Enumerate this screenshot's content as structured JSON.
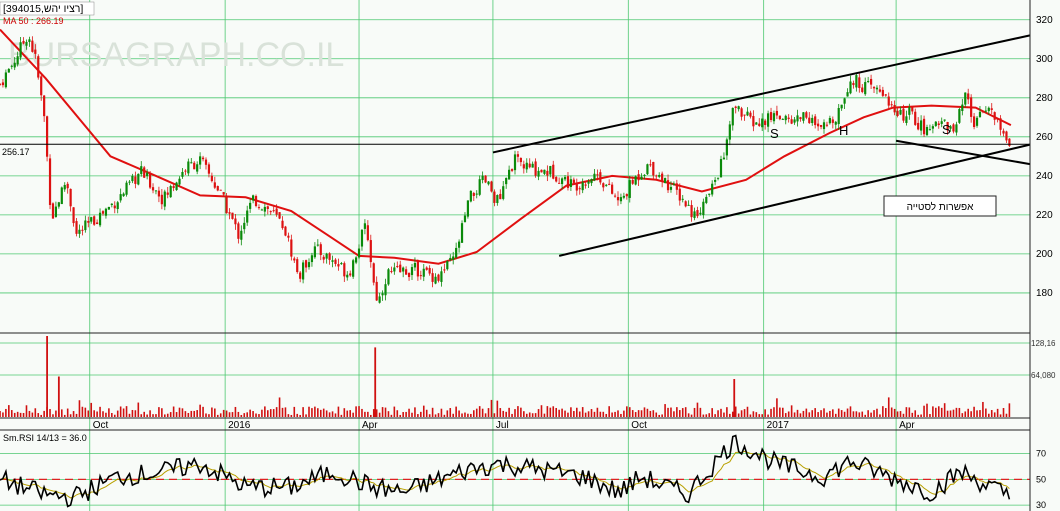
{
  "header": {
    "instrument": "[394015,רציו יהש]",
    "ma_label": "MA 50 : 266.19"
  },
  "watermark": "BURSAGRAPH.CO.IL",
  "price_marker": "256.17",
  "annotations": {
    "button": "אפשרות לסטייה",
    "left_shoulder": "S",
    "head": "H",
    "right_shoulder": "S"
  },
  "rsi_label": "Sm.RSI 14/13 = 36.0",
  "colors": {
    "background": "#f8fbf8",
    "grid": "#4cc870",
    "candle_up": "#0a8a0a",
    "candle_down": "#dd1111",
    "ma": "#e01010",
    "volume": "#d01010",
    "rsi": "#000000",
    "rsi_signal": "#b8a000",
    "rsi_level_line": "#dd2222"
  },
  "chart_data": {
    "type": "candlestick",
    "price_axis": {
      "ticks": [
        180,
        200,
        220,
        240,
        260,
        280,
        300,
        320
      ],
      "range": [
        161,
        325
      ]
    },
    "volume_axis": {
      "ticks": [
        "64,080",
        "128,16"
      ]
    },
    "rsi_axis": {
      "ticks": [
        30,
        50,
        70
      ],
      "range": [
        27,
        86
      ]
    },
    "x_axis": {
      "ticks": [
        "Oct",
        "2016",
        "Apr",
        "Jul",
        "Oct",
        "2017",
        "Apr"
      ]
    },
    "price_path": [
      [
        "2015-08-01",
        287
      ],
      [
        "2015-08-10",
        298
      ],
      [
        "2015-08-20",
        313
      ],
      [
        "2015-08-25",
        300
      ],
      [
        "2015-08-31",
        270
      ],
      [
        "2015-09-05",
        218
      ],
      [
        "2015-09-15",
        238
      ],
      [
        "2015-09-22",
        210
      ],
      [
        "2015-10-05",
        218
      ],
      [
        "2015-10-20",
        228
      ],
      [
        "2015-11-05",
        242
      ],
      [
        "2015-11-20",
        228
      ],
      [
        "2015-12-05",
        244
      ],
      [
        "2015-12-15",
        248
      ],
      [
        "2015-12-28",
        232
      ],
      [
        "2016-01-10",
        210
      ],
      [
        "2016-01-20",
        228
      ],
      [
        "2016-02-01",
        222
      ],
      [
        "2016-02-10",
        214
      ],
      [
        "2016-02-20",
        188
      ],
      [
        "2016-03-01",
        203
      ],
      [
        "2016-03-15",
        196
      ],
      [
        "2016-03-25",
        190
      ],
      [
        "2016-04-01",
        205
      ],
      [
        "2016-04-06",
        215
      ],
      [
        "2016-04-11",
        185
      ],
      [
        "2016-04-14",
        175
      ],
      [
        "2016-04-20",
        190
      ],
      [
        "2016-05-10",
        192
      ],
      [
        "2016-05-25",
        188
      ],
      [
        "2016-06-05",
        198
      ],
      [
        "2016-06-15",
        228
      ],
      [
        "2016-06-25",
        238
      ],
      [
        "2016-07-05",
        226
      ],
      [
        "2016-07-15",
        248
      ],
      [
        "2016-07-25",
        244
      ],
      [
        "2016-08-10",
        242
      ],
      [
        "2016-08-25",
        235
      ],
      [
        "2016-09-10",
        241
      ],
      [
        "2016-09-25",
        226
      ],
      [
        "2016-10-05",
        238
      ],
      [
        "2016-10-15",
        246
      ],
      [
        "2016-10-25",
        238
      ],
      [
        "2016-11-05",
        230
      ],
      [
        "2016-11-15",
        220
      ],
      [
        "2016-11-25",
        230
      ],
      [
        "2016-12-05",
        250
      ],
      [
        "2016-12-12",
        276
      ],
      [
        "2016-12-20",
        270
      ],
      [
        "2016-12-28",
        266
      ],
      [
        "2017-01-10",
        272
      ],
      [
        "2017-01-20",
        268
      ],
      [
        "2017-01-30",
        272
      ],
      [
        "2017-02-08",
        262
      ],
      [
        "2017-02-20",
        272
      ],
      [
        "2017-03-01",
        290
      ],
      [
        "2017-03-10",
        286
      ],
      [
        "2017-03-25",
        282
      ],
      [
        "2017-04-01",
        270
      ],
      [
        "2017-04-10",
        272
      ],
      [
        "2017-04-22",
        262
      ],
      [
        "2017-05-01",
        270
      ],
      [
        "2017-05-10",
        262
      ],
      [
        "2017-05-18",
        280
      ],
      [
        "2017-05-25",
        265
      ],
      [
        "2017-06-02",
        278
      ],
      [
        "2017-06-10",
        265
      ],
      [
        "2017-06-18",
        256
      ]
    ],
    "ma50_path": [
      [
        "2015-08-01",
        315
      ],
      [
        "2015-09-01",
        290
      ],
      [
        "2015-10-15",
        250
      ],
      [
        "2015-11-15",
        240
      ],
      [
        "2015-12-15",
        230
      ],
      [
        "2016-01-15",
        229
      ],
      [
        "2016-02-15",
        222
      ],
      [
        "2016-03-10",
        210
      ],
      [
        "2016-04-01",
        199
      ],
      [
        "2016-04-25",
        198
      ],
      [
        "2016-05-25",
        195
      ],
      [
        "2016-06-20",
        201
      ],
      [
        "2016-07-20",
        218
      ],
      [
        "2016-08-20",
        235
      ],
      [
        "2016-09-20",
        240
      ],
      [
        "2016-10-20",
        238
      ],
      [
        "2016-11-20",
        232
      ],
      [
        "2016-12-20",
        238
      ],
      [
        "2017-01-15",
        250
      ],
      [
        "2017-02-15",
        262
      ],
      [
        "2017-03-10",
        270
      ],
      [
        "2017-03-30",
        275
      ],
      [
        "2017-04-25",
        276
      ],
      [
        "2017-05-25",
        275
      ],
      [
        "2017-06-18",
        266
      ]
    ],
    "trend_lines": [
      {
        "name": "upper-channel",
        "points": [
          [
            "2016-07-01",
            252
          ],
          [
            "2017-07-01",
            312
          ]
        ]
      },
      {
        "name": "lower-channel",
        "points": [
          [
            "2016-08-15",
            199
          ],
          [
            "2017-07-01",
            256
          ]
        ]
      },
      {
        "name": "neckline",
        "points": [
          [
            "2017-04-01",
            258
          ],
          [
            "2017-07-01",
            246
          ]
        ]
      },
      {
        "name": "level-256",
        "points": [
          [
            "2015-08-01",
            256.17
          ],
          [
            "2017-07-01",
            256.17
          ]
        ]
      }
    ],
    "volume_spikes": [
      [
        "2015-09-02",
        128000
      ],
      [
        "2015-09-10",
        64000
      ],
      [
        "2016-04-12",
        110000
      ],
      [
        "2016-12-12",
        60000
      ]
    ],
    "rsi_path": [
      [
        "2015-08-01",
        50
      ],
      [
        "2015-09-01",
        38
      ],
      [
        "2015-09-20",
        36
      ],
      [
        "2015-10-20",
        52
      ],
      [
        "2015-11-20",
        56
      ],
      [
        "2015-12-15",
        62
      ],
      [
        "2016-01-15",
        44
      ],
      [
        "2016-02-15",
        44
      ],
      [
        "2016-03-15",
        56
      ],
      [
        "2016-04-10",
        44
      ],
      [
        "2016-05-01",
        40
      ],
      [
        "2016-06-15",
        58
      ],
      [
        "2016-07-05",
        62
      ],
      [
        "2016-08-01",
        58
      ],
      [
        "2016-09-01",
        52
      ],
      [
        "2016-09-25",
        40
      ],
      [
        "2016-10-10",
        52
      ],
      [
        "2016-11-10",
        38
      ],
      [
        "2016-12-12",
        80
      ],
      [
        "2017-01-10",
        62
      ],
      [
        "2017-02-10",
        52
      ],
      [
        "2017-03-01",
        64
      ],
      [
        "2017-04-01",
        50
      ],
      [
        "2017-04-25",
        40
      ],
      [
        "2017-05-15",
        56
      ],
      [
        "2017-06-18",
        36
      ]
    ],
    "rsi_level": 50
  }
}
